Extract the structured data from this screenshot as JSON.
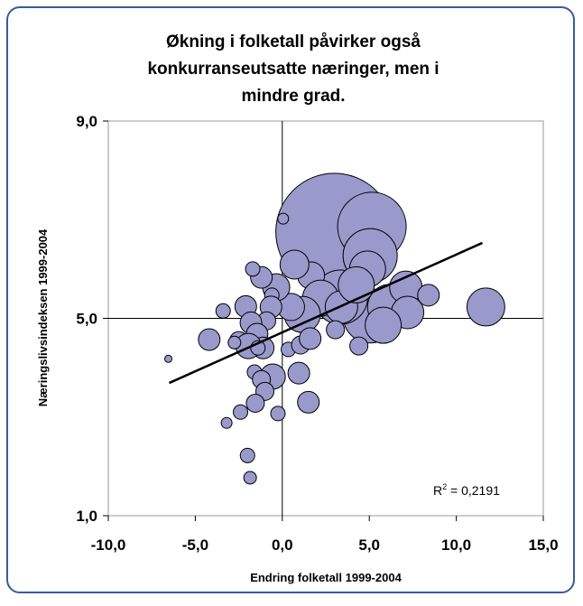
{
  "chart_data": {
    "type": "bubble",
    "title": [
      "Økning i folketall påvirker også",
      "konkurranseutsatte næringer, men i",
      "mindre grad."
    ],
    "x_label": "Endring folketall 1999-2004",
    "y_label": "Næringslivsindeksen 1999-2004",
    "color": "#9999cc",
    "x": [
      3.0,
      5.15,
      5.05,
      4.9,
      5.05,
      3.35,
      6.2,
      7.1,
      8.4,
      11.7,
      1.65,
      0.7,
      2.2,
      3.4,
      1.15,
      0.5,
      -0.35,
      -0.6,
      -1.2,
      -1.7,
      -2.1,
      -0.65,
      -0.9,
      -1.8,
      -1.45,
      -1.1,
      -2.5,
      -3.4,
      -4.2,
      -1.95,
      -1.4,
      -2.75,
      -6.55,
      0.35,
      1.05,
      1.6,
      3.05,
      4.4,
      0.05,
      -1.6,
      -0.55,
      -1.2,
      -1.0,
      0.95,
      -1.55,
      -2.4,
      -3.2,
      -0.25,
      1.5,
      -2.0,
      -1.85,
      7.2,
      5.8,
      4.25
    ],
    "y": [
      6.75,
      6.86,
      6.27,
      6.0,
      5.05,
      5.43,
      5.23,
      5.63,
      5.47,
      5.23,
      5.87,
      6.09,
      5.41,
      5.23,
      5.08,
      5.23,
      5.63,
      5.47,
      5.83,
      6.0,
      5.24,
      5.23,
      4.95,
      4.91,
      4.68,
      4.4,
      4.55,
      5.15,
      4.57,
      4.44,
      4.4,
      4.51,
      4.18,
      4.37,
      4.46,
      4.59,
      4.77,
      4.44,
      7.02,
      3.91,
      3.82,
      3.76,
      3.52,
      3.89,
      3.28,
      3.1,
      2.88,
      3.07,
      3.3,
      2.22,
      1.77,
      5.12,
      4.86,
      5.68
    ],
    "size": [
      65,
      38,
      30,
      20,
      30,
      30,
      25,
      18,
      12,
      21,
      15,
      16,
      20,
      18,
      20,
      15,
      15,
      8,
      12,
      8,
      12,
      12,
      10,
      12,
      12,
      12,
      10,
      8,
      12,
      14,
      8,
      7,
      4,
      8,
      10,
      12,
      10,
      10,
      6,
      8,
      14,
      10,
      10,
      12,
      10,
      8,
      6,
      8,
      12,
      8,
      7,
      18,
      20,
      20
    ],
    "trendline": {
      "x": [
        -6.5,
        11.5
      ],
      "y": [
        3.69,
        6.53
      ]
    },
    "r2_label": {
      "base": "R",
      "sup": "2",
      "rest": " = 0,2191"
    },
    "xlim": [
      -10,
      15
    ],
    "xticks": [
      {
        "value": -10,
        "label": "-10,0"
      },
      {
        "value": -5,
        "label": "-5,0"
      },
      {
        "value": 0,
        "label": "0,0"
      },
      {
        "value": 5,
        "label": "5,0"
      },
      {
        "value": 10,
        "label": "10,0"
      },
      {
        "value": 15,
        "label": "15,0"
      }
    ],
    "ylim": [
      1,
      9
    ],
    "yticks": [
      {
        "value": 1,
        "label": "1,0"
      },
      {
        "value": 5,
        "label": "5,0"
      },
      {
        "value": 9,
        "label": "9,0"
      }
    ],
    "crosshair": {
      "x": 0,
      "y": 5
    }
  }
}
